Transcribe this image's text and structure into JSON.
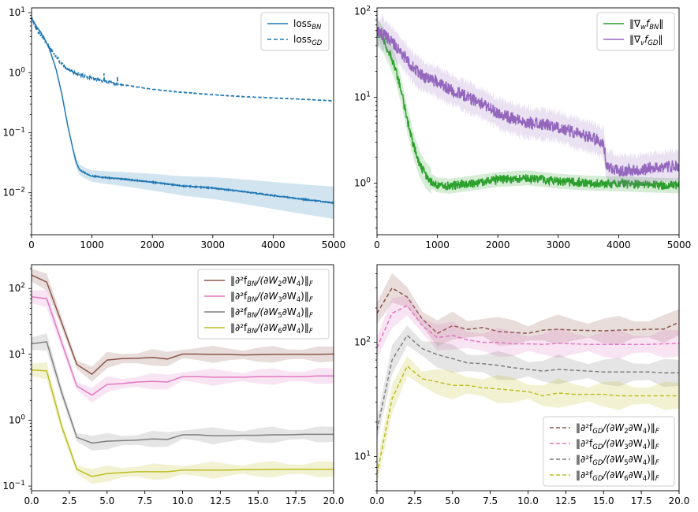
{
  "chart_data": [
    {
      "type": "line",
      "xlim": [
        0,
        5000
      ],
      "ylim": [
        0.002,
        12
      ],
      "yscale": "log",
      "xticks": [
        "0",
        "1000",
        "2000",
        "3000",
        "4000",
        "5000"
      ],
      "yticks": [
        {
          "base": "10",
          "exp": "1"
        },
        {
          "base": "10",
          "exp": "0"
        },
        {
          "base": "10",
          "exp": "−1"
        },
        {
          "base": "10",
          "exp": "−2"
        }
      ],
      "legend_position": "top-right",
      "series": [
        {
          "name": "loss",
          "sub": "BN",
          "color": "#1f77b4",
          "style": "solid",
          "band": true,
          "x": [
            0,
            100,
            200,
            300,
            400,
            500,
            600,
            700,
            750,
            800,
            900,
            1000,
            1200,
            1500,
            2000,
            2500,
            3000,
            3500,
            4000,
            4500,
            5000
          ],
          "y": [
            8,
            5.5,
            4,
            2.4,
            1.2,
            0.45,
            0.13,
            0.045,
            0.03,
            0.024,
            0.021,
            0.019,
            0.018,
            0.017,
            0.015,
            0.013,
            0.012,
            0.0105,
            0.009,
            0.0078,
            0.0068
          ]
        },
        {
          "name": "loss",
          "sub": "GD",
          "color": "#1f77b4",
          "style": "dashed",
          "band": false,
          "x": [
            0,
            100,
            200,
            300,
            400,
            500,
            600,
            700,
            800,
            900,
            1000,
            1200,
            1500,
            2000,
            2500,
            3000,
            3500,
            4000,
            4500,
            5000
          ],
          "y": [
            8,
            5,
            3.6,
            2.6,
            1.9,
            1.4,
            1.15,
            1.0,
            0.92,
            0.85,
            0.8,
            0.72,
            0.63,
            0.53,
            0.47,
            0.43,
            0.4,
            0.38,
            0.36,
            0.34
          ]
        }
      ]
    },
    {
      "type": "line",
      "xlim": [
        0,
        5000
      ],
      "ylim": [
        0.25,
        110
      ],
      "yscale": "log",
      "xticks": [
        "0",
        "1000",
        "2000",
        "3000",
        "4000",
        "5000"
      ],
      "yticks": [
        {
          "base": "10",
          "exp": "2"
        },
        {
          "base": "10",
          "exp": "1"
        },
        {
          "base": "10",
          "exp": "0"
        }
      ],
      "legend_position": "top-right",
      "series": [
        {
          "name": "‖∇",
          "sub": "w",
          "tail": "f",
          "tailsub": "BN",
          "suffix": "‖",
          "color": "#2ca02c",
          "style": "solid",
          "band": true,
          "x": [
            0,
            100,
            200,
            300,
            400,
            500,
            600,
            700,
            800,
            900,
            1000,
            1200,
            1500,
            2000,
            2500,
            3000,
            3500,
            4000,
            4500,
            5000
          ],
          "y": [
            58,
            47,
            34,
            22,
            12,
            5.5,
            2.8,
            1.7,
            1.25,
            1.05,
            0.95,
            0.92,
            0.98,
            1.1,
            1.15,
            1.05,
            1.0,
            0.98,
            0.95,
            0.93
          ]
        },
        {
          "name": "‖∇",
          "sub": "v",
          "tail": "f",
          "tailsub": "GD",
          "suffix": "‖",
          "color": "#9467bd",
          "style": "solid",
          "band": true,
          "x": [
            0,
            100,
            200,
            300,
            400,
            500,
            600,
            700,
            800,
            1000,
            1200,
            1500,
            1800,
            2000,
            2300,
            2500,
            2800,
            3000,
            3300,
            3600,
            3750,
            3800,
            4000,
            4300,
            4600,
            5000
          ],
          "y": [
            58,
            55,
            48,
            40,
            33,
            27,
            22,
            19,
            17,
            15,
            12.5,
            10,
            8,
            6.5,
            5.5,
            5.0,
            4.8,
            4.5,
            3.8,
            3.3,
            2.9,
            1.6,
            1.4,
            1.4,
            1.5,
            1.6
          ]
        }
      ]
    },
    {
      "type": "line",
      "xlim": [
        0,
        20
      ],
      "ylim": [
        0.085,
        230
      ],
      "yscale": "log",
      "xticks": [
        "0.0",
        "2.5",
        "5.0",
        "7.5",
        "10.0",
        "12.5",
        "15.0",
        "17.5",
        "20.0"
      ],
      "yticks": [
        {
          "base": "10",
          "exp": "2"
        },
        {
          "base": "10",
          "exp": "1"
        },
        {
          "base": "10",
          "exp": "0"
        },
        {
          "base": "10",
          "exp": "−1"
        }
      ],
      "legend_position": "top-right",
      "x": [
        0,
        1,
        2,
        3,
        4,
        5,
        6,
        7,
        8,
        9,
        10,
        11,
        12,
        13,
        14,
        15,
        16,
        17,
        18,
        19,
        20
      ],
      "series": [
        {
          "name": "‖∂²f",
          "sub": "BN",
          "tail": "/(∂W",
          "idx": "2",
          "tail2": "∂W",
          "idx2": "4",
          "suffix": ")‖",
          "fsub": "F",
          "color": "#8c564b",
          "style": "solid",
          "y": [
            160,
            125,
            30,
            7.0,
            5.0,
            8.2,
            8.6,
            8.7,
            9.0,
            8.5,
            10.1,
            10.1,
            10.0,
            10.0,
            9.8,
            9.9,
            10.0,
            10.0,
            10.0,
            10.0,
            10.1
          ]
        },
        {
          "name": "‖∂²f",
          "sub": "BN",
          "tail": "/(∂W",
          "idx": "3",
          "tail2": "∂W",
          "idx2": "4",
          "suffix": ")‖",
          "fsub": "F",
          "color": "#e377c2",
          "style": "solid",
          "y": [
            75,
            70,
            15,
            3.3,
            2.4,
            3.5,
            3.6,
            3.8,
            3.9,
            3.8,
            4.6,
            4.6,
            4.5,
            4.5,
            4.5,
            4.6,
            4.6,
            4.6,
            4.6,
            4.7,
            4.7
          ]
        },
        {
          "name": "‖∂²f",
          "sub": "BN",
          "tail": "/(∂W",
          "idx": "5",
          "tail2": "∂W",
          "idx2": "4",
          "suffix": ")‖",
          "fsub": "F",
          "color": "#7f7f7f",
          "style": "solid",
          "y": [
            14.5,
            15.5,
            2.6,
            0.55,
            0.45,
            0.48,
            0.49,
            0.5,
            0.52,
            0.51,
            0.6,
            0.6,
            0.58,
            0.58,
            0.59,
            0.59,
            0.6,
            0.6,
            0.61,
            0.61,
            0.61
          ]
        },
        {
          "name": "‖∂²f",
          "sub": "BN",
          "tail": "/(∂W",
          "idx": "6",
          "tail2": "∂W",
          "idx2": "4",
          "suffix": ")‖",
          "fsub": "F",
          "color": "#bcbd22",
          "style": "solid",
          "y": [
            5.8,
            5.6,
            0.8,
            0.18,
            0.14,
            0.155,
            0.16,
            0.165,
            0.165,
            0.165,
            0.175,
            0.175,
            0.175,
            0.175,
            0.178,
            0.178,
            0.18,
            0.18,
            0.18,
            0.18,
            0.18
          ]
        }
      ]
    },
    {
      "type": "line",
      "xlim": [
        0,
        20
      ],
      "ylim": [
        5.0,
        480
      ],
      "yscale": "log",
      "xticks": [
        "0.0",
        "2.5",
        "5.0",
        "7.5",
        "10.0",
        "12.5",
        "15.0",
        "17.5",
        "20.0"
      ],
      "yticks": [
        {
          "base": "10",
          "exp": "2"
        },
        {
          "base": "10",
          "exp": "1"
        }
      ],
      "legend_position": "bottom-right",
      "x": [
        0,
        1,
        2,
        3,
        4,
        5,
        6,
        7,
        8,
        9,
        10,
        11,
        12,
        13,
        14,
        15,
        16,
        17,
        18,
        19,
        20
      ],
      "series": [
        {
          "name": "‖∂²f",
          "sub": "GD",
          "tail": "/(∂W",
          "idx": "2",
          "tail2": "∂W",
          "idx2": "4",
          "suffix": ")‖",
          "fsub": "F",
          "color": "#8c564b",
          "style": "dashed",
          "y": [
            180,
            300,
            250,
            160,
            120,
            140,
            130,
            135,
            125,
            122,
            120,
            128,
            130,
            128,
            127,
            126,
            128,
            129,
            130,
            131,
            150
          ]
        },
        {
          "name": "‖∂²f",
          "sub": "GD",
          "tail": "/(∂W",
          "idx": "3",
          "tail2": "∂W",
          "idx2": "4",
          "suffix": ")‖",
          "fsub": "F",
          "color": "#e377c2",
          "style": "dashed",
          "y": [
            90,
            180,
            210,
            140,
            110,
            115,
            105,
            100,
            100,
            97,
            97,
            96,
            98,
            97,
            96,
            96,
            96,
            96,
            96,
            97,
            98
          ]
        },
        {
          "name": "‖∂²f",
          "sub": "GD",
          "tail": "/(∂W",
          "idx": "5",
          "tail2": "∂W",
          "idx2": "4",
          "suffix": ")‖",
          "fsub": "F",
          "color": "#7f7f7f",
          "style": "dashed",
          "y": [
            17,
            70,
            115,
            88,
            78,
            72,
            66,
            65,
            63,
            60,
            58,
            56,
            58,
            57,
            56,
            55,
            55,
            55,
            55,
            54,
            54
          ]
        },
        {
          "name": "‖∂²f",
          "sub": "GD",
          "tail": "/(∂W",
          "idx": "6",
          "tail2": "∂W",
          "idx2": "4",
          "suffix": ")‖",
          "fsub": "F",
          "color": "#bcbd22",
          "style": "dashed",
          "y": [
            7,
            32,
            62,
            48,
            45,
            42,
            42,
            40,
            39,
            38,
            37,
            34,
            36,
            35,
            35,
            35,
            34,
            34,
            34,
            34,
            34
          ]
        }
      ]
    }
  ]
}
